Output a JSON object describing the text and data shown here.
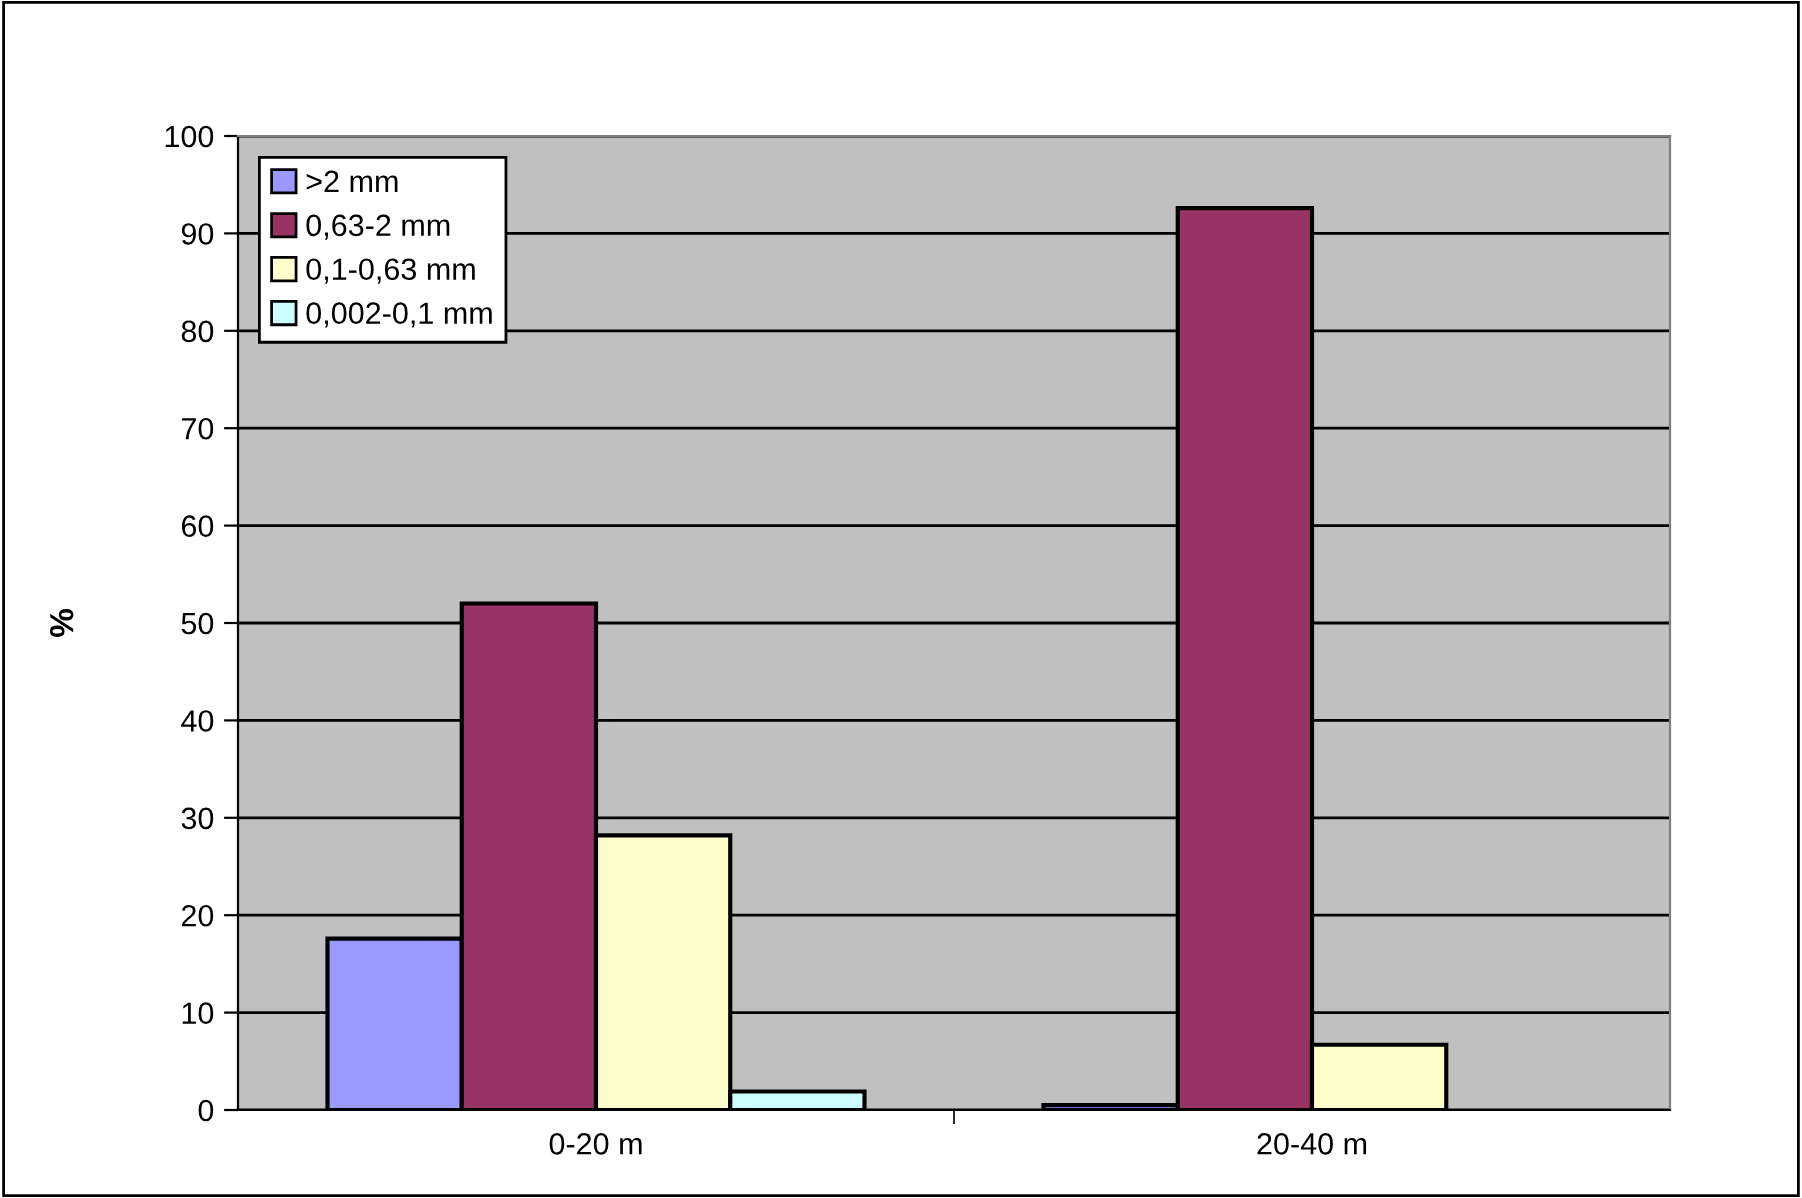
{
  "chart_data": {
    "type": "bar",
    "ylabel": "%",
    "categories": [
      "0-20 m",
      "20-40 m"
    ],
    "series": [
      {
        "name": ">2 mm",
        "color": "#9999ff",
        "values": [
          17.6,
          0.5
        ]
      },
      {
        "name": "0,63-2 mm",
        "color": "#993366",
        "values": [
          52,
          92.6
        ]
      },
      {
        "name": "0,1-0,63 mm",
        "color": "#ffffcc",
        "values": [
          28.2,
          6.7
        ]
      },
      {
        "name": "0,002-0,1 mm",
        "color": "#ccffff",
        "values": [
          1.9,
          null
        ]
      }
    ],
    "ylim": [
      0,
      100
    ],
    "yticks": [
      0,
      10,
      20,
      30,
      40,
      50,
      60,
      70,
      80,
      90,
      100
    ],
    "grid": "y",
    "legend": "top left"
  }
}
